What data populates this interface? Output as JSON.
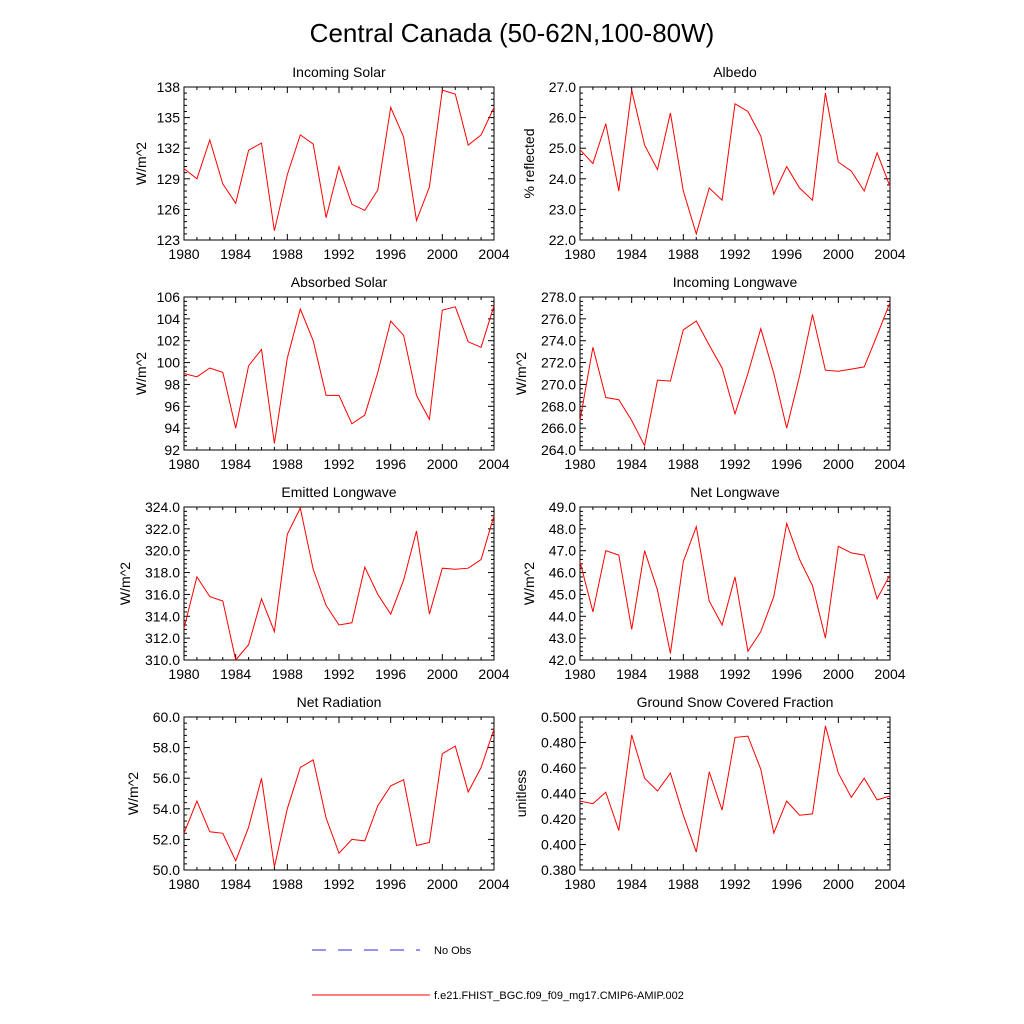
{
  "title": "Central Canada (50-62N,100-80W)",
  "line_color": "#ff0000",
  "obs_color": "#2b2bd6",
  "legend": {
    "obs_label": "No Obs",
    "model_label": "f.e21.FHIST_BGC.f09_f09_mg17.CMIP6-AMIP.002"
  },
  "chart_data": [
    {
      "type": "line",
      "title": "Incoming Solar",
      "ylabel": "W/m^2",
      "xlim": [
        1980,
        2004
      ],
      "ylim": [
        123,
        138
      ],
      "xticks": [
        1980,
        1984,
        1988,
        1992,
        1996,
        2000,
        2004
      ],
      "yticks": [
        "123",
        "126",
        "129",
        "132",
        "135",
        "138"
      ],
      "x": [
        1980,
        1981,
        1982,
        1983,
        1984,
        1985,
        1986,
        1987,
        1988,
        1989,
        1990,
        1991,
        1992,
        1993,
        1994,
        1995,
        1996,
        1997,
        1998,
        1999,
        2000,
        2001,
        2002,
        2003,
        2004
      ],
      "values": [
        130.0,
        129.0,
        132.8,
        128.5,
        126.6,
        131.8,
        132.5,
        123.9,
        129.4,
        133.3,
        132.4,
        125.2,
        130.2,
        126.5,
        125.9,
        127.9,
        136.0,
        133.1,
        124.9,
        128.2,
        137.7,
        137.3,
        132.3,
        133.3,
        136.0
      ]
    },
    {
      "type": "line",
      "title": "Albedo",
      "ylabel": "% reflected",
      "xlim": [
        1980,
        2004
      ],
      "ylim": [
        22.0,
        27.0
      ],
      "xticks": [
        1980,
        1984,
        1988,
        1992,
        1996,
        2000,
        2004
      ],
      "yticks": [
        "22.0",
        "23.0",
        "24.0",
        "25.0",
        "26.0",
        "27.0"
      ],
      "x": [
        1980,
        1981,
        1982,
        1983,
        1984,
        1985,
        1986,
        1987,
        1988,
        1989,
        1990,
        1991,
        1992,
        1993,
        1994,
        1995,
        1996,
        1997,
        1998,
        1999,
        2000,
        2001,
        2002,
        2003,
        2004
      ],
      "values": [
        24.95,
        24.5,
        25.8,
        23.6,
        26.9,
        25.1,
        24.3,
        26.15,
        23.6,
        22.2,
        23.7,
        23.3,
        26.45,
        26.2,
        25.4,
        23.5,
        24.4,
        23.7,
        23.3,
        26.8,
        24.55,
        24.25,
        23.6,
        24.85,
        23.75
      ]
    },
    {
      "type": "line",
      "title": "Absorbed Solar",
      "ylabel": "W/m^2",
      "xlim": [
        1980,
        2004
      ],
      "ylim": [
        92,
        106
      ],
      "xticks": [
        1980,
        1984,
        1988,
        1992,
        1996,
        2000,
        2004
      ],
      "yticks": [
        "92",
        "94",
        "96",
        "98",
        "100",
        "102",
        "104",
        "106"
      ],
      "x": [
        1980,
        1981,
        1982,
        1983,
        1984,
        1985,
        1986,
        1987,
        1988,
        1989,
        1990,
        1991,
        1992,
        1993,
        1994,
        1995,
        1996,
        1997,
        1998,
        1999,
        2000,
        2001,
        2002,
        2003,
        2004
      ],
      "values": [
        99.0,
        98.7,
        99.5,
        99.1,
        94.0,
        99.7,
        101.2,
        92.6,
        100.4,
        104.9,
        102.0,
        97.0,
        97.0,
        94.4,
        95.2,
        99.1,
        103.8,
        102.5,
        97.0,
        94.8,
        104.8,
        105.1,
        101.9,
        101.4,
        105.2
      ]
    },
    {
      "type": "line",
      "title": "Incoming Longwave",
      "ylabel": "W/m^2",
      "xlim": [
        1980,
        2004
      ],
      "ylim": [
        264.0,
        278.0
      ],
      "xticks": [
        1980,
        1984,
        1988,
        1992,
        1996,
        2000,
        2004
      ],
      "yticks": [
        "264.0",
        "266.0",
        "268.0",
        "270.0",
        "272.0",
        "274.0",
        "276.0",
        "278.0"
      ],
      "x": [
        1980,
        1981,
        1982,
        1983,
        1984,
        1985,
        1986,
        1987,
        1988,
        1989,
        1990,
        1991,
        1992,
        1993,
        1994,
        1995,
        1996,
        1997,
        1998,
        1999,
        2000,
        2001,
        2002,
        2003,
        2004
      ],
      "values": [
        266.7,
        273.4,
        268.8,
        268.6,
        266.7,
        264.4,
        270.4,
        270.3,
        275.0,
        275.8,
        273.6,
        271.5,
        267.3,
        271.0,
        275.1,
        271.0,
        266.0,
        270.8,
        276.4,
        271.3,
        271.2,
        271.4,
        271.6,
        274.5,
        277.5
      ]
    },
    {
      "type": "line",
      "title": "Emitted Longwave",
      "ylabel": "W/m^2",
      "xlim": [
        1980,
        2004
      ],
      "ylim": [
        310.0,
        324.0
      ],
      "xticks": [
        1980,
        1984,
        1988,
        1992,
        1996,
        2000,
        2004
      ],
      "yticks": [
        "310.0",
        "312.0",
        "314.0",
        "316.0",
        "318.0",
        "320.0",
        "322.0",
        "324.0"
      ],
      "x": [
        1980,
        1981,
        1982,
        1983,
        1984,
        1985,
        1986,
        1987,
        1988,
        1989,
        1990,
        1991,
        1992,
        1993,
        1994,
        1995,
        1996,
        1997,
        1998,
        1999,
        2000,
        2001,
        2002,
        2003,
        2004
      ],
      "values": [
        312.9,
        317.6,
        315.8,
        315.4,
        310.0,
        311.4,
        315.6,
        312.6,
        321.5,
        323.9,
        318.3,
        315.0,
        313.2,
        313.4,
        318.5,
        316.0,
        314.2,
        317.3,
        321.8,
        314.2,
        318.4,
        318.3,
        318.4,
        319.2,
        323.2
      ]
    },
    {
      "type": "line",
      "title": "Net Longwave",
      "ylabel": "W/m^2",
      "xlim": [
        1980,
        2004
      ],
      "ylim": [
        42.0,
        49.0
      ],
      "xticks": [
        1980,
        1984,
        1988,
        1992,
        1996,
        2000,
        2004
      ],
      "yticks": [
        "42.0",
        "43.0",
        "44.0",
        "45.0",
        "46.0",
        "47.0",
        "48.0",
        "49.0"
      ],
      "x": [
        1980,
        1981,
        1982,
        1983,
        1984,
        1985,
        1986,
        1987,
        1988,
        1989,
        1990,
        1991,
        1992,
        1993,
        1994,
        1995,
        1996,
        1997,
        1998,
        1999,
        2000,
        2001,
        2002,
        2003,
        2004
      ],
      "values": [
        46.5,
        44.2,
        47.0,
        46.8,
        43.4,
        47.0,
        45.2,
        42.3,
        46.5,
        48.1,
        44.7,
        43.6,
        45.8,
        42.4,
        43.3,
        44.9,
        48.25,
        46.6,
        45.4,
        43.0,
        47.2,
        46.9,
        46.8,
        44.8,
        45.9
      ]
    },
    {
      "type": "line",
      "title": "Net Radiation",
      "ylabel": "W/m^2",
      "xlim": [
        1980,
        2004
      ],
      "ylim": [
        50.0,
        60.0
      ],
      "xticks": [
        1980,
        1984,
        1988,
        1992,
        1996,
        2000,
        2004
      ],
      "yticks": [
        "50.0",
        "52.0",
        "54.0",
        "56.0",
        "58.0",
        "60.0"
      ],
      "x": [
        1980,
        1981,
        1982,
        1983,
        1984,
        1985,
        1986,
        1987,
        1988,
        1989,
        1990,
        1991,
        1992,
        1993,
        1994,
        1995,
        1996,
        1997,
        1998,
        1999,
        2000,
        2001,
        2002,
        2003,
        2004
      ],
      "values": [
        52.4,
        54.5,
        52.5,
        52.4,
        50.6,
        52.8,
        56.0,
        50.2,
        54.0,
        56.7,
        57.2,
        53.4,
        51.1,
        52.0,
        51.9,
        54.2,
        55.5,
        55.9,
        51.6,
        51.8,
        57.6,
        58.1,
        55.1,
        56.7,
        59.2
      ]
    },
    {
      "type": "line",
      "title": "Ground Snow Covered Fraction",
      "ylabel": "unitless",
      "xlim": [
        1980,
        2004
      ],
      "ylim": [
        0.38,
        0.5
      ],
      "xticks": [
        1980,
        1984,
        1988,
        1992,
        1996,
        2000,
        2004
      ],
      "yticks": [
        "0.380",
        "0.400",
        "0.420",
        "0.440",
        "0.460",
        "0.480",
        "0.500"
      ],
      "x": [
        1980,
        1981,
        1982,
        1983,
        1984,
        1985,
        1986,
        1987,
        1988,
        1989,
        1990,
        1991,
        1992,
        1993,
        1994,
        1995,
        1996,
        1997,
        1998,
        1999,
        2000,
        2001,
        2002,
        2003,
        2004
      ],
      "values": [
        0.434,
        0.432,
        0.441,
        0.411,
        0.486,
        0.452,
        0.442,
        0.456,
        0.423,
        0.394,
        0.457,
        0.427,
        0.484,
        0.485,
        0.459,
        0.409,
        0.434,
        0.423,
        0.424,
        0.493,
        0.456,
        0.437,
        0.452,
        0.435,
        0.438
      ]
    }
  ]
}
